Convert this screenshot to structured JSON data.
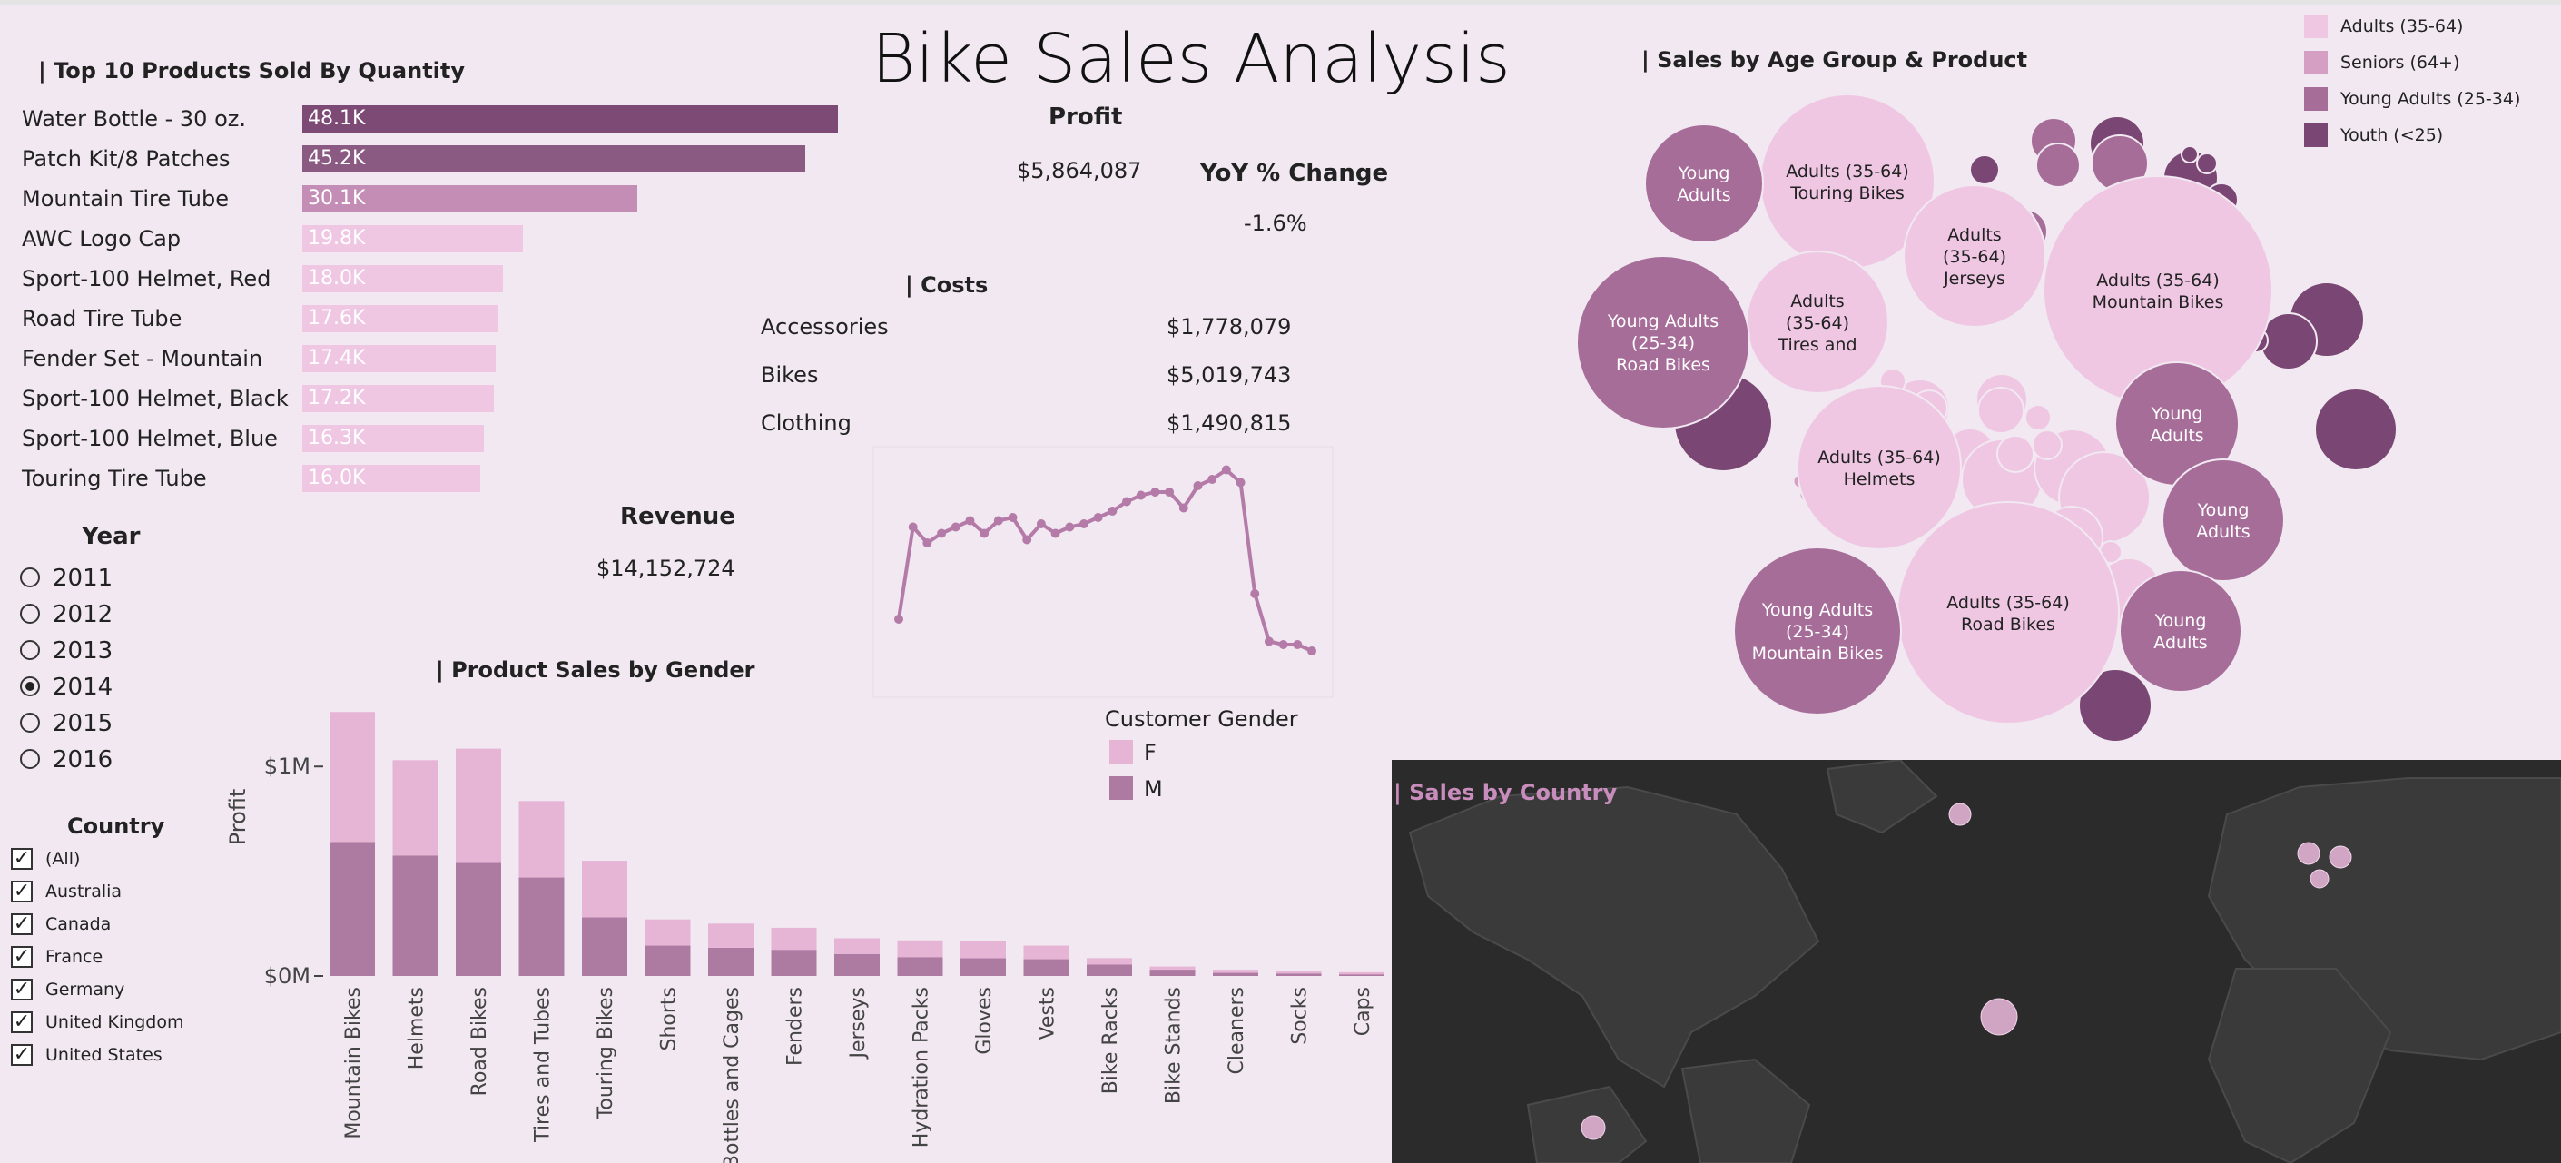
{
  "title": "Bike Sales Analysis",
  "colors": {
    "background": "#f1e8f1",
    "adults": "#efc7e3",
    "seniors": "#d49fc2",
    "young_adults": "#a66d99",
    "youth": "#7a4673",
    "female": "#e6b5d6",
    "male": "#ad7aa2",
    "line": "#b57ba8",
    "map_bg": "#2b2b2b",
    "map_land": "#3a3a3a"
  },
  "top_products": {
    "title": "| Top 10 Products Sold By Quantity",
    "items": [
      {
        "name": "Water Bottle - 30 oz.",
        "label": "48.1K",
        "value": 48100,
        "color": "#7d4a76"
      },
      {
        "name": "Patch Kit/8 Patches",
        "label": "45.2K",
        "value": 45200,
        "color": "#8a5a82"
      },
      {
        "name": "Mountain Tire Tube",
        "label": "30.1K",
        "value": 30100,
        "color": "#c38db5"
      },
      {
        "name": "AWC Logo Cap",
        "label": "19.8K",
        "value": 19800,
        "color": "#efc7e3"
      },
      {
        "name": "Sport-100 Helmet, Red",
        "label": "18.0K",
        "value": 18000,
        "color": "#efc7e3"
      },
      {
        "name": "Road Tire Tube",
        "label": "17.6K",
        "value": 17600,
        "color": "#efc7e3"
      },
      {
        "name": "Fender Set - Mountain",
        "label": "17.4K",
        "value": 17400,
        "color": "#efc7e3"
      },
      {
        "name": "Sport-100 Helmet, Black",
        "label": "17.2K",
        "value": 17200,
        "color": "#efc7e3"
      },
      {
        "name": "Sport-100 Helmet, Blue",
        "label": "16.3K",
        "value": 16300,
        "color": "#efc7e3"
      },
      {
        "name": "Touring Tire Tube",
        "label": "16.0K",
        "value": 16000,
        "color": "#efc7e3"
      }
    ]
  },
  "kpis": {
    "profit_label": "Profit",
    "profit_value": "$5,864,087",
    "yoy_label": "YoY % Change",
    "yoy_value": "-1.6%",
    "revenue_label": "Revenue",
    "revenue_value": "$14,152,724"
  },
  "costs": {
    "title": "| Costs",
    "rows": [
      {
        "name": "Accessories",
        "value": "$1,778,079"
      },
      {
        "name": "Bikes",
        "value": "$5,019,743"
      },
      {
        "name": "Clothing",
        "value": "$1,490,815"
      }
    ]
  },
  "year_filter": {
    "title": "Year",
    "options": [
      "2011",
      "2012",
      "2013",
      "2014",
      "2015",
      "2016"
    ],
    "selected": "2014"
  },
  "country_filter": {
    "title": "Country",
    "options": [
      "(All)",
      "Australia",
      "Canada",
      "France",
      "Germany",
      "United Kingdom",
      "United States"
    ],
    "checked": [
      true,
      true,
      true,
      true,
      true,
      true,
      true
    ]
  },
  "gender_legend": {
    "title": "Customer Gender",
    "items": [
      {
        "label": "F",
        "color": "#e6b5d6"
      },
      {
        "label": "M",
        "color": "#ad7aa2"
      }
    ]
  },
  "age_legend": {
    "items": [
      {
        "label": "Adults (35-64)",
        "color": "#efc7e3"
      },
      {
        "label": "Seniors (64+)",
        "color": "#d49fc2"
      },
      {
        "label": "Young Adults (25-34)",
        "color": "#a66d99"
      },
      {
        "label": "Youth (<25)",
        "color": "#7a4673"
      }
    ]
  },
  "bubble_title": "| Sales by Age Group & Product",
  "map_title": "| Sales by Country",
  "chart_data": [
    {
      "type": "line",
      "name": "profit_trend",
      "title": "",
      "values": [
        18,
        47,
        42,
        45,
        47,
        49,
        45,
        49,
        50,
        43,
        48,
        45,
        47,
        48,
        50,
        52,
        55,
        57,
        58,
        58,
        53,
        60,
        62,
        65,
        61,
        26,
        11,
        10,
        10,
        8
      ]
    },
    {
      "type": "bar",
      "name": "product_sales_by_gender",
      "title": "| Product Sales by Gender",
      "ylabel": "Profit",
      "yticks": [
        {
          "label": "$1M",
          "value": 1000000
        },
        {
          "label": "$0M",
          "value": 0
        }
      ],
      "ylim": [
        0,
        1300000
      ],
      "categories": [
        "Mountain Bikes",
        "Helmets",
        "Road Bikes",
        "Tires and Tubes",
        "Touring Bikes",
        "Shorts",
        "Bottles and Cages",
        "Fenders",
        "Jerseys",
        "Hydration Packs",
        "Gloves",
        "Vests",
        "Bike Racks",
        "Bike Stands",
        "Cleaners",
        "Socks",
        "Caps"
      ],
      "series": [
        {
          "name": "M",
          "values": [
            640000,
            575000,
            540000,
            470000,
            280000,
            145000,
            135000,
            125000,
            105000,
            90000,
            85000,
            80000,
            55000,
            30000,
            15000,
            12000,
            8000
          ]
        },
        {
          "name": "F",
          "values": [
            620000,
            455000,
            545000,
            365000,
            270000,
            125000,
            115000,
            105000,
            75000,
            80000,
            80000,
            65000,
            30000,
            15000,
            15000,
            13000,
            10000
          ]
        }
      ]
    },
    {
      "type": "bubble",
      "name": "sales_by_age_group_product",
      "bubbles": [
        {
          "label": "Adults (35-64)\nMountain Bikes",
          "group": "adults",
          "size": 1.0
        },
        {
          "label": "Adults (35-64)\nRoad Bikes",
          "group": "adults",
          "size": 0.88
        },
        {
          "label": "Adults (35-64)\nTouring Bikes",
          "group": "adults",
          "size": 0.62
        },
        {
          "label": "Adults (35-64)\nHelmets",
          "group": "adults",
          "size": 0.58
        },
        {
          "label": "Adults\n(35-64)\nJerseys",
          "group": "adults",
          "size": 0.47
        },
        {
          "label": "Adults\n(35-64)\nTires and",
          "group": "adults",
          "size": 0.47
        },
        {
          "label": "Young Adults\n(25-34)\nRoad Bikes",
          "group": "young_adults",
          "size": 0.62
        },
        {
          "label": "Young Adults\n(25-34)\nMountain Bikes",
          "group": "young_adults",
          "size": 0.6
        },
        {
          "label": "Young\nAdults",
          "group": "young_adults",
          "size": 0.42
        },
        {
          "label": "Young\nAdults",
          "group": "young_adults",
          "size": 0.42
        },
        {
          "label": "Young\nAdults",
          "group": "young_adults",
          "size": 0.4
        },
        {
          "label": "Young\nAdults",
          "group": "young_adults",
          "size": 0.36
        }
      ]
    },
    {
      "type": "scatter",
      "name": "sales_by_country",
      "points": [
        {
          "country": "United States"
        },
        {
          "country": "Canada"
        },
        {
          "country": "United Kingdom"
        },
        {
          "country": "Germany"
        },
        {
          "country": "France"
        },
        {
          "country": "Australia"
        }
      ]
    }
  ]
}
